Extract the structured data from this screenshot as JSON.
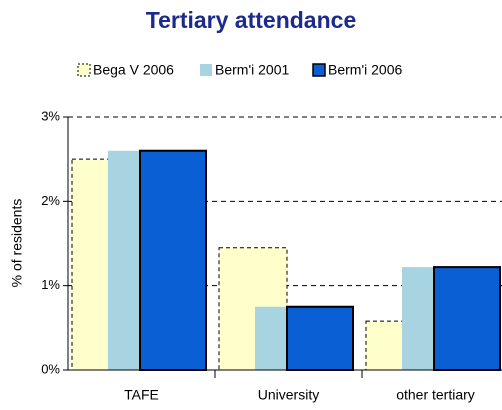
{
  "chart_data": {
    "type": "bar",
    "title": "Tertiary attendance",
    "y_label": "% of residents",
    "categories": [
      "TAFE",
      "University",
      "other tertiary"
    ],
    "series": [
      {
        "name": "Bega V 2006",
        "color": "#ffffcc",
        "values": [
          2.5,
          1.45,
          0.58
        ]
      },
      {
        "name": "Berm'i 2001",
        "color": "#a8d4e2",
        "values": [
          2.6,
          0.75,
          1.22
        ]
      },
      {
        "name": "Berm'i 2006",
        "color": "#0a5fd4",
        "values": [
          2.6,
          0.75,
          1.22
        ]
      }
    ],
    "ylim": [
      0,
      3
    ],
    "yticks": [
      {
        "value": 0,
        "label": "0%"
      },
      {
        "value": 1,
        "label": "1%"
      },
      {
        "value": 2,
        "label": "2%"
      },
      {
        "value": 3,
        "label": "3%"
      }
    ],
    "grid": true,
    "legend": "top"
  }
}
